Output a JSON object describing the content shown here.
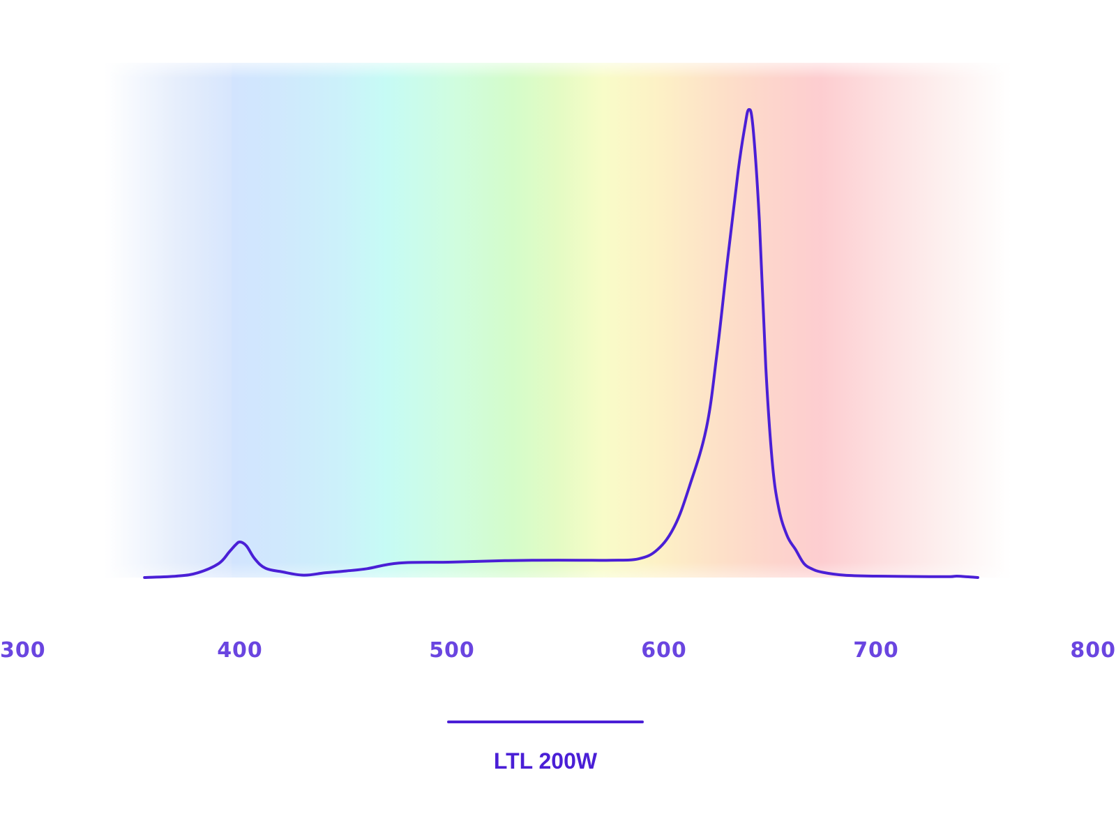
{
  "chart_data": {
    "type": "line",
    "title": "",
    "xlabel": "",
    "ylabel": "",
    "xlim": [
      300,
      800
    ],
    "ylim": [
      0,
      1
    ],
    "x_ticks": [
      "300",
      "400",
      "500",
      "600",
      "700",
      "800"
    ],
    "background": "visible-spectrum gradient (380-780 nm)",
    "grid": false,
    "legend_position": "bottom-center",
    "series": [
      {
        "name": "LTL 200W",
        "color": "#4a1fd6",
        "x": [
          355,
          370,
          380,
          390,
          395,
          398,
          400,
          403,
          407,
          412,
          420,
          430,
          440,
          450,
          460,
          475,
          500,
          525,
          540,
          560,
          575,
          588,
          597,
          605,
          612,
          620,
          625,
          630,
          635,
          638,
          640,
          642,
          645,
          648,
          651,
          654,
          658,
          662,
          666,
          670,
          675,
          685,
          700,
          725,
          735,
          738,
          742,
          748
        ],
        "y": [
          0.0,
          0.003,
          0.01,
          0.03,
          0.055,
          0.07,
          0.076,
          0.068,
          0.04,
          0.02,
          0.012,
          0.005,
          0.01,
          0.014,
          0.019,
          0.031,
          0.033,
          0.036,
          0.037,
          0.037,
          0.037,
          0.04,
          0.06,
          0.11,
          0.195,
          0.32,
          0.48,
          0.68,
          0.87,
          0.96,
          1.0,
          0.96,
          0.76,
          0.45,
          0.25,
          0.15,
          0.09,
          0.06,
          0.03,
          0.018,
          0.011,
          0.005,
          0.003,
          0.002,
          0.002,
          0.003,
          0.002,
          0.0
        ]
      }
    ]
  },
  "colors": {
    "line": "#4a1fd6",
    "tick_label": "#6a45e0",
    "legend_label": "#4a1fd6"
  }
}
